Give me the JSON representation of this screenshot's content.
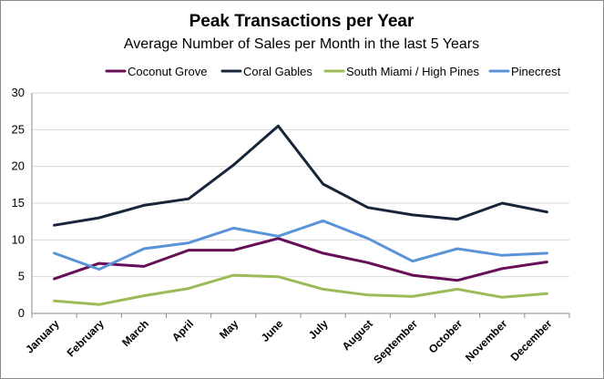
{
  "chart_data": {
    "type": "line",
    "title": "Peak Transactions per Year",
    "subtitle": "Average Number of Sales per Month in the last 5 Years",
    "xlabel": "",
    "ylabel": "",
    "categories": [
      "January",
      "February",
      "March",
      "April",
      "May",
      "June",
      "July",
      "August",
      "September",
      "October",
      "November",
      "December"
    ],
    "ylim": [
      0,
      30
    ],
    "yticks": [
      0,
      5,
      10,
      15,
      20,
      25,
      30
    ],
    "grid": true,
    "legend_position": "top",
    "series": [
      {
        "name": "Coconut Grove",
        "color": "#660E57",
        "values": [
          4.7,
          6.8,
          6.4,
          8.6,
          8.6,
          10.2,
          8.2,
          6.9,
          5.2,
          4.5,
          6.1,
          7.0
        ]
      },
      {
        "name": "Coral Gables",
        "color": "#17253A",
        "values": [
          12.0,
          13.0,
          14.7,
          15.6,
          20.2,
          25.5,
          17.6,
          14.4,
          13.4,
          12.8,
          15.0,
          13.8
        ]
      },
      {
        "name": "South Miami / High Pines",
        "color": "#9BBB59",
        "values": [
          1.7,
          1.2,
          2.4,
          3.4,
          5.2,
          5.0,
          3.3,
          2.5,
          2.3,
          3.3,
          2.2,
          2.7
        ]
      },
      {
        "name": "Pinecrest",
        "color": "#5B93D9",
        "values": [
          8.2,
          6.0,
          8.8,
          9.6,
          11.6,
          10.5,
          12.6,
          10.2,
          7.1,
          8.8,
          7.9,
          8.2
        ]
      }
    ]
  }
}
